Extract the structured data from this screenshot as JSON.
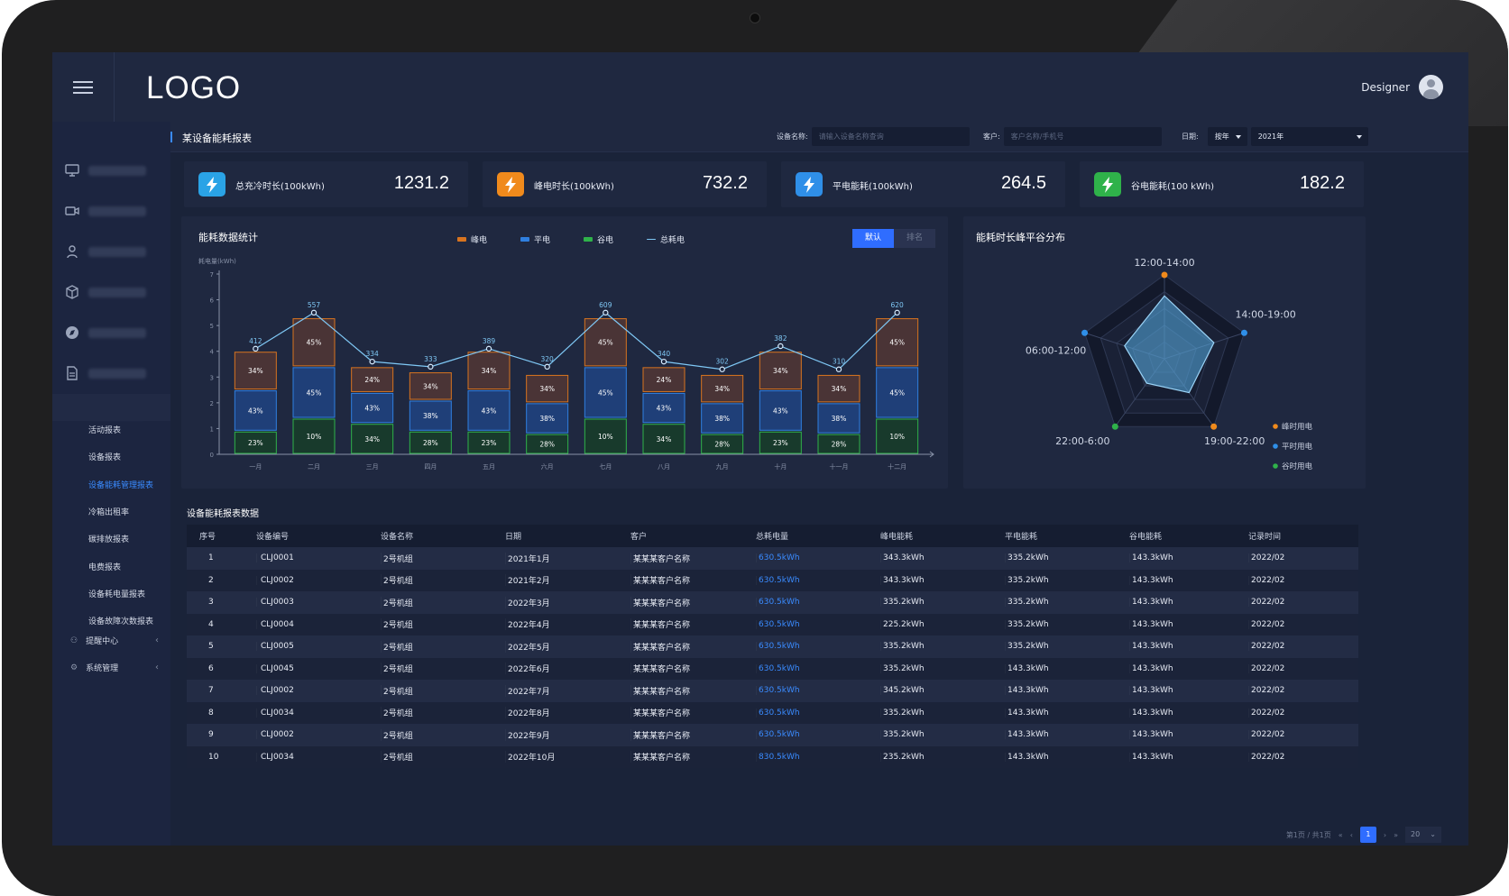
{
  "header": {
    "logo": "LOGO",
    "user_name": "Designer"
  },
  "sidebar": {
    "collapsed_items": [
      "search-monitor-icon",
      "video-icon",
      "person-icon",
      "cube-icon",
      "compass-icon",
      "document-icon",
      "people-icon"
    ],
    "sub_items": [
      "活动报表",
      "设备报表",
      "设备能耗管理报表",
      "冷箱出租率",
      "碳排放报表",
      "电费报表",
      "设备耗电量报表",
      "设备故障次数报表"
    ],
    "active_sub": "设备能耗管理报表",
    "groups": [
      {
        "label": "提醒中心"
      },
      {
        "label": "系统管理"
      }
    ]
  },
  "page": {
    "title": "某设备能耗报表",
    "filters": {
      "device_label": "设备名称:",
      "device_placeholder": "请输入设备名称查询",
      "customer_label": "客户:",
      "customer_placeholder": "客户名称/手机号",
      "date_label": "日期:",
      "date_mode": "按年",
      "date_value": "2021年"
    }
  },
  "kpis": [
    {
      "label": "总充冷时长(100kWh)",
      "value": "1231.2",
      "color": "#2aa3e6"
    },
    {
      "label": "峰电时长(100kWh)",
      "value": "732.2",
      "color": "#f08a1c"
    },
    {
      "label": "平电能耗(100kWh)",
      "value": "264.5",
      "color": "#2f8fe8"
    },
    {
      "label": "谷电能耗(100 kWh)",
      "value": "182.2",
      "color": "#2fb24a"
    }
  ],
  "energy_chart": {
    "title": "能耗数据统计",
    "legend": [
      "峰电",
      "平电",
      "谷电",
      "总耗电"
    ],
    "toggle": [
      "默认",
      "排名"
    ],
    "colors": {
      "peak": "#d8741f",
      "flat": "#2f7fe0",
      "valley": "#2fb24a",
      "total": "#7fc8f5"
    }
  },
  "chart_data": [
    {
      "type": "bar",
      "stacked": true,
      "ylabel": "耗电量(kWh)",
      "ylim": [
        0,
        7
      ],
      "yticks": [
        0,
        1,
        2,
        3,
        4,
        5,
        6,
        7
      ],
      "categories": [
        "一月",
        "二月",
        "三月",
        "四月",
        "五月",
        "六月",
        "七月",
        "八月",
        "九月",
        "十月",
        "十一月",
        "十二月"
      ],
      "series": [
        {
          "name": "谷电",
          "values": [
            0.9,
            1.4,
            1.2,
            0.9,
            0.9,
            0.8,
            1.4,
            1.2,
            0.8,
            0.9,
            0.8,
            1.4
          ],
          "labels": [
            "23%",
            "10%",
            "34%",
            "28%",
            "23%",
            "28%",
            "10%",
            "34%",
            "28%",
            "23%",
            "28%",
            "10%"
          ]
        },
        {
          "name": "平电",
          "values": [
            1.6,
            2.0,
            1.2,
            1.2,
            1.6,
            1.2,
            2.0,
            1.2,
            1.2,
            1.6,
            1.2,
            2.0
          ],
          "labels": [
            "43%",
            "45%",
            "43%",
            "38%",
            "43%",
            "38%",
            "45%",
            "43%",
            "38%",
            "43%",
            "38%",
            "45%"
          ]
        },
        {
          "name": "峰电",
          "values": [
            1.5,
            1.9,
            1.0,
            1.1,
            1.5,
            1.1,
            1.9,
            1.0,
            1.1,
            1.5,
            1.1,
            1.9
          ],
          "labels": [
            "34%",
            "45%",
            "24%",
            "34%",
            "34%",
            "34%",
            "45%",
            "24%",
            "34%",
            "34%",
            "34%",
            "45%"
          ]
        },
        {
          "name": "总耗电",
          "type": "line",
          "values": [
            4.1,
            5.5,
            3.6,
            3.4,
            4.1,
            3.4,
            5.5,
            3.6,
            3.3,
            4.2,
            3.3,
            5.5
          ],
          "labels": [
            "412",
            "557",
            "334",
            "333",
            "389",
            "320",
            "609",
            "340",
            "302",
            "382",
            "310",
            "620"
          ]
        }
      ]
    },
    {
      "type": "radar",
      "title": "能耗时长峰平谷分布",
      "axes": [
        "12:00-14:00",
        "14:00-19:00",
        "19:00-22:00",
        "22:00-6:00",
        "06:00-12:00"
      ],
      "series": [
        {
          "values": [
            0.75,
            0.62,
            0.5,
            0.36,
            0.5
          ]
        }
      ],
      "legend": [
        "峰时用电",
        "平时用电",
        "谷时用电"
      ],
      "legend_colors": [
        "#f08a1c",
        "#2f8fe8",
        "#2fb24a"
      ],
      "axis_point_colors": [
        "#f08a1c",
        "#2f8fe8",
        "#f08a1c",
        "#2fb24a",
        "#2f8fe8"
      ]
    }
  ],
  "table": {
    "title": "设备能耗报表数据",
    "columns": [
      "序号",
      "设备编号",
      "设备名称",
      "日期",
      "客户",
      "总耗电量",
      "峰电能耗",
      "平电能耗",
      "谷电能耗",
      "记录时间"
    ],
    "rows": [
      [
        "1",
        "CLJ0001",
        "2号机组",
        "2021年1月",
        "某某某客户名称",
        "630.5kWh",
        "343.3kWh",
        "335.2kWh",
        "143.3kWh",
        "2022/02"
      ],
      [
        "2",
        "CLJ0002",
        "2号机组",
        "2021年2月",
        "某某某客户名称",
        "630.5kWh",
        "343.3kWh",
        "335.2kWh",
        "143.3kWh",
        "2022/02"
      ],
      [
        "3",
        "CLJ0003",
        "2号机组",
        "2022年3月",
        "某某某客户名称",
        "630.5kWh",
        "335.2kWh",
        "335.2kWh",
        "143.3kWh",
        "2022/02"
      ],
      [
        "4",
        "CLJ0004",
        "2号机组",
        "2022年4月",
        "某某某客户名称",
        "630.5kWh",
        "225.2kWh",
        "335.2kWh",
        "143.3kWh",
        "2022/02"
      ],
      [
        "5",
        "CLJ0005",
        "2号机组",
        "2022年5月",
        "某某某客户名称",
        "630.5kWh",
        "335.2kWh",
        "335.2kWh",
        "143.3kWh",
        "2022/02"
      ],
      [
        "6",
        "CLJ0045",
        "2号机组",
        "2022年6月",
        "某某某客户名称",
        "630.5kWh",
        "335.2kWh",
        "143.3kWh",
        "143.3kWh",
        "2022/02"
      ],
      [
        "7",
        "CLJ0002",
        "2号机组",
        "2022年7月",
        "某某某客户名称",
        "630.5kWh",
        "345.2kWh",
        "143.3kWh",
        "143.3kWh",
        "2022/02"
      ],
      [
        "8",
        "CLJ0034",
        "2号机组",
        "2022年8月",
        "某某某客户名称",
        "630.5kWh",
        "335.2kWh",
        "143.3kWh",
        "143.3kWh",
        "2022/02"
      ],
      [
        "9",
        "CLJ0002",
        "2号机组",
        "2022年9月",
        "某某某客户名称",
        "630.5kWh",
        "335.2kWh",
        "143.3kWh",
        "143.3kWh",
        "2022/02"
      ],
      [
        "10",
        "CLJ0034",
        "2号机组",
        "2022年10月",
        "某某某客户名称",
        "830.5kWh",
        "235.2kWh",
        "143.3kWh",
        "143.3kWh",
        "2022/02"
      ]
    ]
  },
  "pagination": {
    "summary": "第1页 / 共1页",
    "current": "1",
    "page_size": "20"
  }
}
